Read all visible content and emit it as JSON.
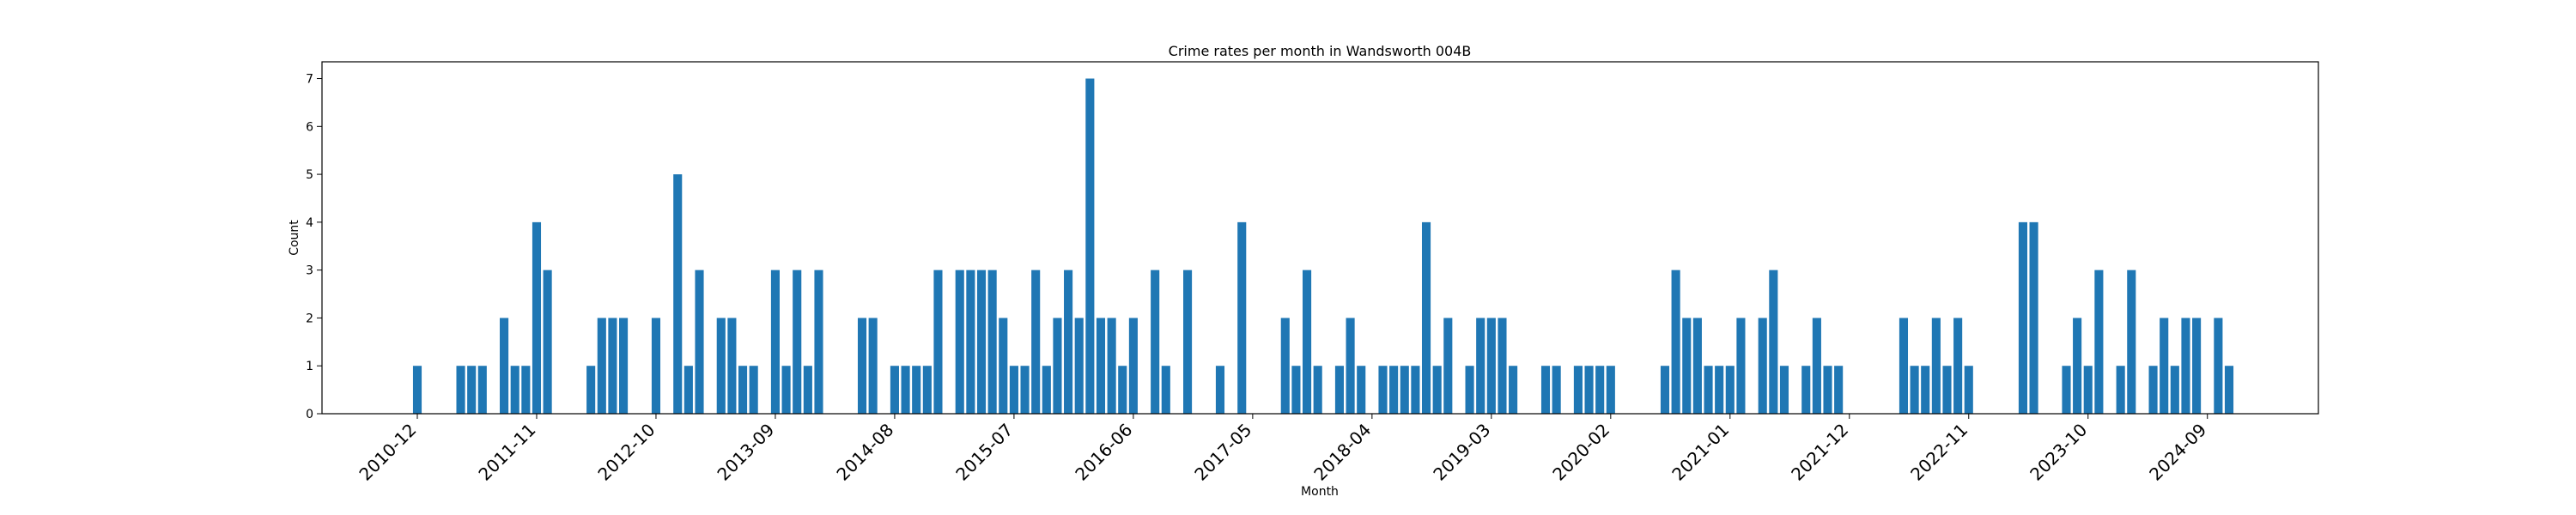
{
  "chart_data": {
    "type": "bar",
    "title": "Crime rates per month in Wandsworth 004B",
    "xlabel": "Month",
    "ylabel": "Count",
    "ylim": [
      0,
      7.35
    ],
    "yticks": [
      0,
      1,
      2,
      3,
      4,
      5,
      6,
      7
    ],
    "x_tick_labels": [
      "2010-12",
      "2011-11",
      "2012-10",
      "2013-09",
      "2014-08",
      "2015-07",
      "2016-06",
      "2017-05",
      "2018-04",
      "2019-03",
      "2020-02",
      "2021-01",
      "2021-12",
      "2022-11",
      "2023-10",
      "2024-09"
    ],
    "x_start": "2010-12",
    "bar_color": "#1f77b4",
    "series": [
      {
        "values": [
          1,
          0,
          0,
          0,
          1,
          1,
          1,
          0,
          2,
          1,
          1,
          4,
          3,
          0,
          0,
          0,
          1,
          2,
          2,
          2,
          0,
          0,
          2,
          0,
          5,
          1,
          3,
          0,
          2,
          2,
          1,
          1,
          0,
          3,
          1,
          3,
          1,
          3,
          0,
          0,
          0,
          2,
          2,
          0,
          1,
          1,
          1,
          1,
          3,
          0,
          3,
          3,
          3,
          3,
          2,
          1,
          1,
          3,
          1,
          2,
          3,
          2,
          7,
          2,
          2,
          1,
          2,
          0,
          3,
          1,
          0,
          3,
          0,
          0,
          1,
          0,
          4,
          0,
          0,
          0,
          2,
          1,
          3,
          1,
          0,
          1,
          2,
          1,
          0,
          1,
          1,
          1,
          1,
          4,
          1,
          2,
          0,
          1,
          2,
          2,
          2,
          1,
          0,
          0,
          1,
          1,
          0,
          1,
          1,
          1,
          1,
          0,
          0,
          0,
          0,
          1,
          3,
          2,
          2,
          1,
          1,
          1,
          2,
          0,
          2,
          3,
          1,
          0,
          1,
          2,
          1,
          1,
          0,
          0,
          0,
          0,
          0,
          2,
          1,
          1,
          2,
          1,
          2,
          1,
          0,
          0,
          0,
          0,
          4,
          4,
          0,
          0,
          1,
          2,
          1,
          3,
          0,
          1,
          3,
          0,
          1,
          2,
          1,
          2,
          2,
          0,
          2,
          1
        ]
      }
    ]
  }
}
